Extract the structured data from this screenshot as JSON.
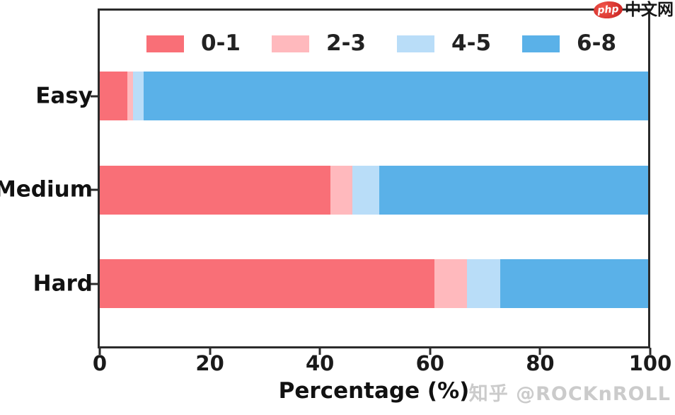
{
  "watermark_top": {
    "logo_text": "php",
    "site_text": "中文网"
  },
  "watermark_bottom": {
    "text": "知乎 @ROCKnROLL"
  },
  "chart_data": {
    "type": "bar",
    "orientation": "horizontal",
    "stacked": true,
    "title": "",
    "xlabel": "Percentage (%)",
    "ylabel": "",
    "xlim": [
      0,
      100
    ],
    "xticks": [
      0,
      20,
      40,
      60,
      80,
      100
    ],
    "grid": false,
    "legend_position": "top-inside",
    "categories": [
      "Easy",
      "Medium",
      "Hard"
    ],
    "series": [
      {
        "name": "0-1",
        "color": "#f96f77",
        "values": [
          5,
          42,
          61
        ]
      },
      {
        "name": "2-3",
        "color": "#ffb9bd",
        "values": [
          1,
          4,
          6
        ]
      },
      {
        "name": "4-5",
        "color": "#b9ddf8",
        "values": [
          2,
          5,
          6
        ]
      },
      {
        "name": "6-8",
        "color": "#5ab1e8",
        "values": [
          92,
          49,
          27
        ]
      }
    ],
    "colors": {
      "axis": "#2b2b2b",
      "text": "#111111",
      "watermark_gray": "#cbcbcb",
      "logo_red": "#d32922"
    }
  }
}
